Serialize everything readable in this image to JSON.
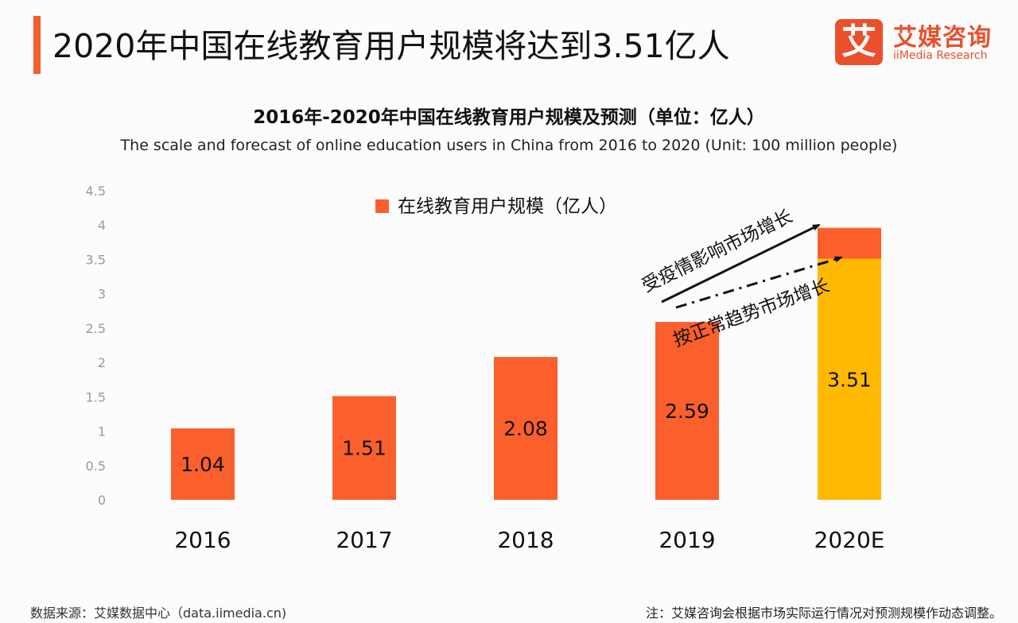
{
  "header": {
    "title": "2020年中国在线教育用户规模将达到3.51亿人",
    "logo_mark": "艾",
    "logo_cn": "艾媒咨询",
    "logo_en": "iiMedia Research"
  },
  "colors": {
    "accent": "#f25f2c",
    "bar": "#fa5f2c",
    "forecast_base": "#ffb900",
    "logo": "#e9502b"
  },
  "chart_data": {
    "type": "bar",
    "title": "2016年-2020年中国在线教育用户规模及预测（单位：亿人）",
    "subtitle": "The scale and forecast of online education users in China from 2016 to 2020 (Unit: 100 million people)",
    "categories": [
      "2016",
      "2017",
      "2018",
      "2019",
      "2020E"
    ],
    "series": [
      {
        "name": "在线教育用户规模（亿人）",
        "values": [
          1.04,
          1.51,
          2.08,
          2.59,
          3.51
        ]
      },
      {
        "name": "epidemic uplift (unlabeled)",
        "values": [
          0,
          0,
          0,
          0,
          0.45
        ]
      }
    ],
    "data_labels": [
      "1.04",
      "1.51",
      "2.08",
      "2.59",
      "3.51"
    ],
    "legend": {
      "label": "在线教育用户规模（亿人）",
      "position": "top-center"
    },
    "ylim": [
      0,
      4.5
    ],
    "yticks": [
      "0",
      "0.5",
      "1",
      "1.5",
      "2",
      "2.5",
      "3",
      "3.5",
      "4",
      "4.5"
    ],
    "grid": false,
    "annotations": {
      "epidemic": "受疫情影响市场增长",
      "normal": "按正常趋势市场增长"
    }
  },
  "footer": {
    "source": "数据来源：艾媒数据中心（data.iimedia.cn)",
    "note": "注：艾媒咨询会根据市场实际运行情况对预测规模作动态调整。"
  }
}
